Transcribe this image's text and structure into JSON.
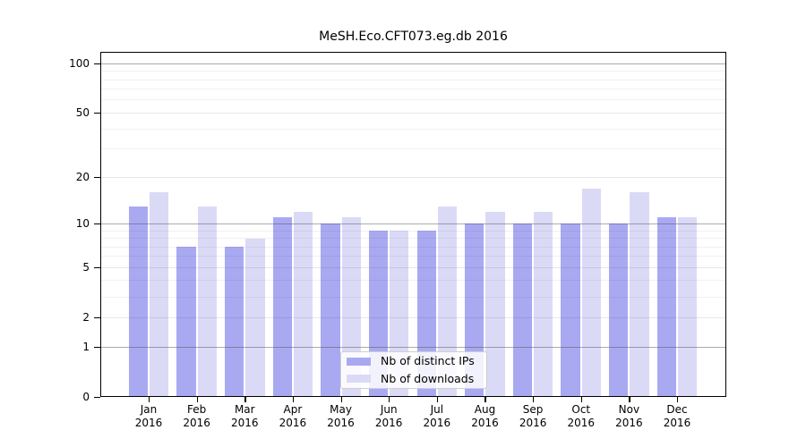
{
  "title": "MeSH.Eco.CFT073.eg.db 2016",
  "chart_data": {
    "type": "bar",
    "title": "MeSH.Eco.CFT073.eg.db 2016",
    "xlabel": "",
    "ylabel": "",
    "year": "2016",
    "categories": [
      "Jan",
      "Feb",
      "Mar",
      "Apr",
      "May",
      "Jun",
      "Jul",
      "Aug",
      "Sep",
      "Oct",
      "Nov",
      "Dec"
    ],
    "series": [
      {
        "name": "Nb of distinct IPs",
        "color": "#a9a9f2",
        "values": [
          13,
          7,
          7,
          11,
          10,
          9,
          9,
          10,
          10,
          10,
          10,
          11
        ]
      },
      {
        "name": "Nb of downloads",
        "color": "#dadaf7",
        "values": [
          16,
          13,
          8,
          12,
          11,
          9,
          13,
          12,
          12,
          17,
          16,
          11
        ]
      }
    ],
    "y_scale": "log10(1+value)",
    "ylim": [
      0,
      117
    ],
    "y_ticks": [
      100,
      50,
      20,
      10,
      5,
      2,
      1,
      0
    ],
    "y_tick_labels": [
      "100",
      "50",
      "20",
      "10",
      "5",
      "2",
      "1",
      "0"
    ],
    "y_minor_ticks": [
      3,
      4,
      6,
      7,
      8,
      9,
      30,
      40,
      60,
      70,
      80,
      90
    ],
    "y_decade_lines": [
      1,
      10,
      100
    ],
    "grid": true,
    "legend_position": "lower-center",
    "legend": [
      "Nb of distinct IPs",
      "Nb of downloads"
    ]
  }
}
